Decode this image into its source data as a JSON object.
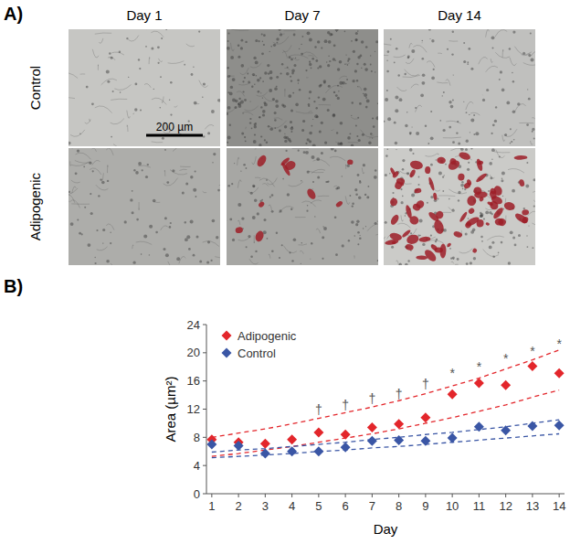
{
  "panel_labels": [
    "A)",
    "B)"
  ],
  "micrographs": {
    "columns": [
      "Day 1",
      "Day 7",
      "Day 14"
    ],
    "rows": [
      "Control",
      "Adipogenic"
    ],
    "scale_bar": "200 µm"
  },
  "chart_data": {
    "type": "scatter",
    "x_label": "Day",
    "y_label": "Area (µm²)",
    "x": [
      1,
      2,
      3,
      4,
      5,
      6,
      7,
      8,
      9,
      10,
      11,
      12,
      13,
      14
    ],
    "xlim": [
      0.8,
      14.2
    ],
    "xticks": [
      1,
      2,
      3,
      4,
      5,
      6,
      7,
      8,
      9,
      10,
      11,
      12,
      13,
      14
    ],
    "ylim": [
      0,
      24
    ],
    "yticks": [
      0,
      4,
      8,
      12,
      16,
      20,
      24
    ],
    "grid": false,
    "legend": "upper left",
    "series": [
      {
        "name": "Adipogenic",
        "color": "#e3262b",
        "marker": "diamond",
        "values": [
          7.7,
          7.3,
          7.1,
          7.7,
          8.7,
          8.4,
          9.4,
          9.9,
          10.8,
          14.1,
          15.7,
          15.4,
          18.1,
          17.1
        ]
      },
      {
        "name": "Control",
        "color": "#3a56a5",
        "marker": "diamond",
        "values": [
          7.0,
          6.8,
          5.7,
          6.0,
          6.0,
          6.6,
          7.5,
          7.6,
          7.5,
          7.9,
          9.5,
          9.0,
          9.6,
          9.7
        ]
      },
      {
        "color": "#e3262b",
        "type": "line",
        "line_style": "dashed",
        "values": [
          8.0,
          8.6,
          9.2,
          9.9,
          10.7,
          11.5,
          12.3,
          13.2,
          14.2,
          15.3,
          16.4,
          17.7,
          19.0,
          20.4
        ]
      },
      {
        "color": "#e3262b",
        "type": "line",
        "line_style": "dashed",
        "values": [
          5.3,
          5.7,
          6.2,
          6.7,
          7.3,
          7.9,
          8.5,
          9.2,
          10.0,
          10.8,
          11.7,
          12.6,
          13.7,
          14.7
        ]
      },
      {
        "color": "#3a56a5",
        "type": "line",
        "line_style": "dashed",
        "values": [
          5.9,
          6.2,
          6.4,
          6.7,
          7.0,
          7.3,
          7.7,
          8.0,
          8.4,
          8.7,
          9.1,
          9.5,
          10.0,
          10.5
        ]
      },
      {
        "color": "#3a56a5",
        "type": "line",
        "line_style": "dashed",
        "values": [
          5.1,
          5.3,
          5.5,
          5.7,
          6.0,
          6.2,
          6.5,
          6.7,
          7.0,
          7.3,
          7.6,
          7.9,
          8.2,
          8.5
        ]
      }
    ],
    "annotations": [
      {
        "text": "†",
        "x": 5,
        "y": 11.3
      },
      {
        "text": "†",
        "x": 6,
        "y": 11.9
      },
      {
        "text": "†",
        "x": 7,
        "y": 12.8
      },
      {
        "text": "†",
        "x": 8,
        "y": 13.5
      },
      {
        "text": "†",
        "x": 9,
        "y": 14.9
      },
      {
        "text": "*",
        "x": 10,
        "y": 16.5
      },
      {
        "text": "*",
        "x": 11,
        "y": 17.4
      },
      {
        "text": "*",
        "x": 12,
        "y": 18.5
      },
      {
        "text": "*",
        "x": 13,
        "y": 19.6
      },
      {
        "text": "*",
        "x": 14,
        "y": 20.6
      }
    ]
  }
}
